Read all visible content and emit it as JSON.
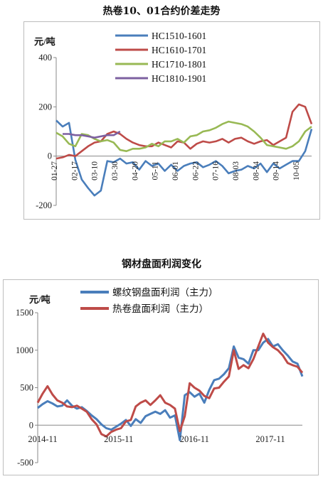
{
  "chart_data": [
    {
      "type": "line",
      "title": "热卷10、01合约价差走势",
      "ylabel": "元/吨",
      "ylim": [
        -200,
        400
      ],
      "yticks": [
        -200,
        0,
        200,
        400
      ],
      "x_tick_labels": [
        "01-27",
        "02-17",
        "03-10",
        "03-30",
        "04-20",
        "05-11",
        "06-01",
        "06-22",
        "07-16",
        "08-03",
        "08-24",
        "09-14",
        "10-05"
      ],
      "grid": false,
      "legend": "top-right",
      "colors": {
        "HC1510-1601": "#4a7ebb",
        "HC1610-1701": "#be4b48",
        "HC1710-1801": "#98b954",
        "HC1810-1901": "#7d60a0"
      },
      "series": [
        {
          "name": "HC1510-1601",
          "values": [
            145,
            120,
            135,
            -15,
            -95,
            -130,
            -160,
            -140,
            -20,
            -25,
            -10,
            -30,
            -25,
            -55,
            -20,
            -40,
            -30,
            -60,
            -35,
            -60,
            -40,
            -30,
            -25,
            -45,
            -35,
            -20,
            -40,
            -70,
            -60,
            -55,
            -40,
            -50,
            -30,
            -65,
            -30,
            -50,
            -35,
            -20,
            -20,
            20,
            110
          ]
        },
        {
          "name": "HC1610-1701",
          "values": [
            -10,
            -5,
            5,
            0,
            20,
            40,
            55,
            60,
            90,
            100,
            90,
            70,
            55,
            45,
            40,
            40,
            55,
            45,
            35,
            60,
            55,
            30,
            50,
            60,
            55,
            60,
            70,
            55,
            70,
            75,
            60,
            50,
            60,
            65,
            45,
            60,
            75,
            180,
            210,
            200,
            130
          ]
        },
        {
          "name": "HC1710-1801",
          "values": [
            95,
            80,
            50,
            40,
            90,
            85,
            70,
            60,
            65,
            55,
            25,
            20,
            30,
            30,
            35,
            50,
            40,
            60,
            60,
            70,
            55,
            80,
            85,
            100,
            105,
            115,
            130,
            140,
            135,
            130,
            120,
            100,
            75,
            45,
            40,
            35,
            30,
            40,
            60,
            100,
            120
          ]
        },
        {
          "name": "HC1810-1901",
          "values": [
            90,
            90,
            85,
            85,
            80,
            75,
            80,
            85,
            85,
            100
          ]
        }
      ]
    },
    {
      "type": "line",
      "title": "钢材盘面利润变化",
      "ylabel": "元/吨",
      "ylim": [
        -500,
        1500
      ],
      "yticks": [
        -500,
        0,
        500,
        1000,
        1500
      ],
      "x_tick_labels": [
        "2014-11",
        "2015-11",
        "2016-11",
        "2017-11"
      ],
      "grid": false,
      "legend": "top",
      "colors": {
        "螺纹钢盘面利润（主力）": "#4a7ebb",
        "热卷盘面利润（主力）": "#be4b48"
      },
      "series": [
        {
          "name": "螺纹钢盘面利润（主力）",
          "values": [
            230,
            280,
            320,
            290,
            250,
            260,
            330,
            260,
            220,
            240,
            190,
            130,
            80,
            10,
            -40,
            -60,
            -20,
            20,
            70,
            -10,
            80,
            30,
            120,
            150,
            180,
            150,
            200,
            100,
            130,
            -200,
            400,
            440,
            380,
            420,
            300,
            470,
            600,
            620,
            680,
            760,
            1050,
            900,
            880,
            820,
            1000,
            1000,
            1100,
            1150,
            1050,
            1080,
            1000,
            930,
            850,
            820,
            650
          ]
        },
        {
          "name": "热卷盘面利润（主力）",
          "values": [
            300,
            420,
            520,
            410,
            330,
            300,
            250,
            240,
            260,
            220,
            180,
            80,
            10,
            -120,
            -150,
            -90,
            -60,
            -40,
            50,
            70,
            250,
            300,
            330,
            270,
            330,
            400,
            300,
            270,
            220,
            -80,
            120,
            560,
            500,
            460,
            390,
            360,
            490,
            500,
            580,
            650,
            1000,
            750,
            800,
            760,
            880,
            1050,
            1220,
            1100,
            1040,
            1000,
            930,
            830,
            800,
            780,
            700
          ]
        }
      ]
    }
  ]
}
